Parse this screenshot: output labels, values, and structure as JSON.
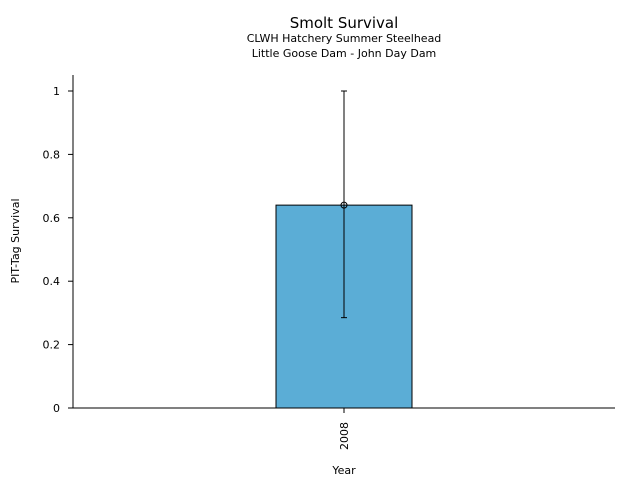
{
  "chart_data": {
    "type": "bar",
    "title": "Smolt Survival",
    "subtitle": [
      "CLWH Hatchery Summer Steelhead",
      "Little Goose Dam - John Day Dam"
    ],
    "xlabel": "Year",
    "ylabel": "PIT-Tag Survival",
    "categories": [
      "2008"
    ],
    "values": [
      0.64
    ],
    "error_low": [
      0.285
    ],
    "error_high": [
      1.0
    ],
    "ylim": [
      0,
      1.05
    ],
    "yticks": [
      0,
      0.2,
      0.4,
      0.6,
      0.8,
      1
    ],
    "ytick_labels": [
      "0",
      "0.2",
      "0.4",
      "0.6",
      "0.8",
      "1"
    ],
    "grid": false,
    "bar_color": "#5badd6"
  }
}
